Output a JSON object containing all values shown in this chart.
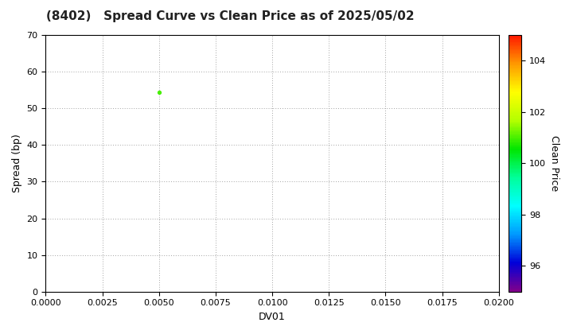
{
  "title": "(8402)   Spread Curve vs Clean Price as of 2025/05/02",
  "xlabel": "DV01",
  "ylabel": "Spread (bp)",
  "colorbar_label": "Clean Price",
  "xlim": [
    0.0,
    0.02
  ],
  "ylim": [
    0,
    70
  ],
  "xticks": [
    0.0,
    0.0025,
    0.005,
    0.0075,
    0.01,
    0.0125,
    0.015,
    0.0175,
    0.02
  ],
  "yticks": [
    0,
    10,
    20,
    30,
    40,
    50,
    60,
    70
  ],
  "colorbar_ticks": [
    96,
    98,
    100,
    102,
    104
  ],
  "colorbar_min": 95.0,
  "colorbar_max": 105.0,
  "scatter_x": [
    0.005
  ],
  "scatter_y": [
    54.5
  ],
  "scatter_color": [
    101.0
  ],
  "scatter_size": 8,
  "background_color": "#ffffff",
  "grid_color": "#999999",
  "title_fontsize": 11,
  "label_fontsize": 9,
  "tick_fontsize": 8,
  "colorbar_fontsize": 9,
  "colorbar_tick_fontsize": 8
}
